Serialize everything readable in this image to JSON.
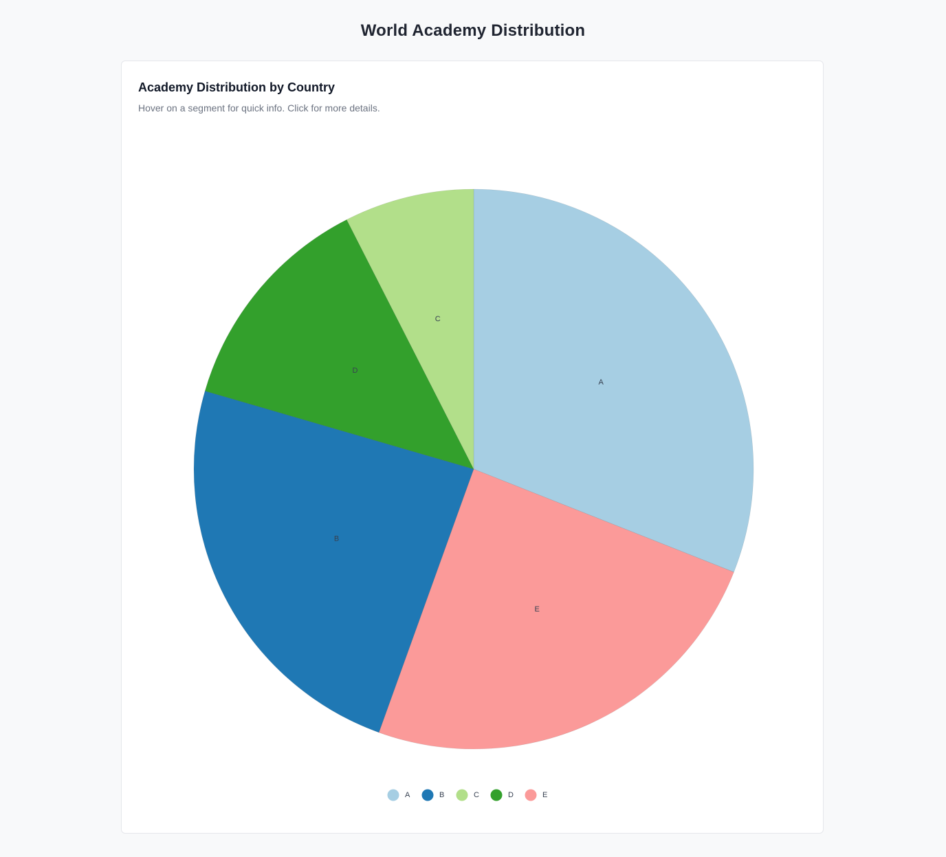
{
  "header": {
    "title": "World Academy Distribution"
  },
  "card": {
    "title": "Academy Distribution by Country",
    "subtitle": "Hover on a segment for quick info. Click for more details."
  },
  "chart_data": {
    "type": "pie",
    "title": "Academy Distribution by Country",
    "categories": [
      "A",
      "B",
      "C",
      "D",
      "E"
    ],
    "values": [
      31,
      24,
      7.5,
      13,
      24.5
    ],
    "colors": [
      "#a6cee3",
      "#1f78b4",
      "#b2df8a",
      "#33a02c",
      "#fb9a99"
    ],
    "slice_order": [
      "A",
      "E",
      "B",
      "D",
      "C"
    ],
    "start": "top, clockwise",
    "legend": "bottom-center",
    "slice_labels": "inside"
  }
}
